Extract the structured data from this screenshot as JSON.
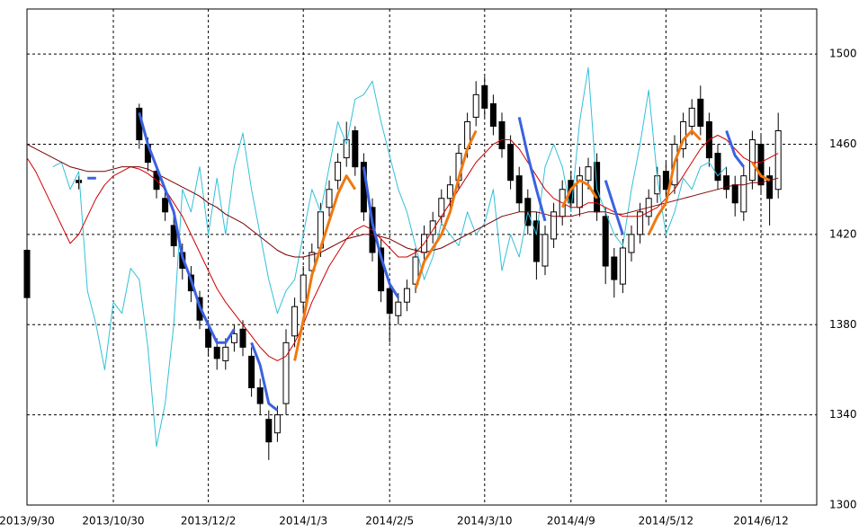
{
  "chart_data": {
    "type": "candlestick",
    "categories": [
      "2013/9/30",
      null,
      null,
      null,
      null,
      null,
      null,
      null,
      null,
      null,
      "2013/10/30",
      null,
      null,
      null,
      null,
      null,
      null,
      null,
      null,
      null,
      null,
      "2013/12/2",
      null,
      null,
      null,
      null,
      null,
      null,
      null,
      null,
      null,
      null,
      "2014/1/3",
      null,
      null,
      null,
      null,
      null,
      null,
      null,
      null,
      null,
      "2014/2/5",
      null,
      null,
      null,
      null,
      null,
      null,
      null,
      null,
      null,
      null,
      "2014/3/10",
      null,
      null,
      null,
      null,
      null,
      null,
      null,
      null,
      null,
      "2014/4/9",
      null,
      null,
      null,
      null,
      null,
      null,
      null,
      null,
      null,
      null,
      "2014/5/12",
      null,
      null,
      null,
      null,
      null,
      null,
      null,
      null,
      null,
      null,
      "2014/6/12",
      null,
      null
    ],
    "open": [
      1413,
      null,
      null,
      null,
      null,
      null,
      1444,
      null,
      null,
      null,
      null,
      null,
      null,
      1476,
      1460,
      1448,
      1436,
      1424,
      1412,
      1402,
      1392,
      1378,
      1370,
      1364,
      1372,
      1378,
      1366,
      1352,
      1338,
      1332,
      1345,
      1375,
      1390,
      1404,
      1414,
      1432,
      1444,
      1454,
      1466,
      1452,
      1432,
      1414,
      1396,
      1384,
      1390,
      1398,
      1412,
      1420,
      1428,
      1436,
      1444,
      1458,
      1472,
      1486,
      1478,
      1470,
      1460,
      1446,
      1436,
      1426,
      1406,
      1418,
      1428,
      1444,
      1432,
      1444,
      1452,
      1428,
      1410,
      1398,
      1412,
      1420,
      1428,
      1438,
      1448,
      1442,
      1458,
      1468,
      1480,
      1470,
      1456,
      1446,
      1442,
      1430,
      1444,
      1460,
      1446,
      1440
    ],
    "high": [
      1416,
      null,
      null,
      null,
      null,
      null,
      1446,
      null,
      null,
      null,
      null,
      null,
      null,
      1478,
      1463,
      1451,
      1440,
      1428,
      1416,
      1406,
      1395,
      1382,
      1374,
      1374,
      1380,
      1382,
      1370,
      1356,
      1342,
      1344,
      1378,
      1392,
      1406,
      1416,
      1434,
      1444,
      1456,
      1470,
      1468,
      1456,
      1436,
      1418,
      1400,
      1394,
      1400,
      1414,
      1424,
      1430,
      1440,
      1446,
      1460,
      1474,
      1488,
      1490,
      1482,
      1474,
      1464,
      1450,
      1440,
      1430,
      1424,
      1434,
      1444,
      1448,
      1450,
      1454,
      1456,
      1432,
      1414,
      1418,
      1424,
      1434,
      1440,
      1450,
      1452,
      1464,
      1474,
      1480,
      1486,
      1474,
      1460,
      1450,
      1446,
      1450,
      1466,
      1464,
      1450,
      1474
    ],
    "low": [
      1390,
      null,
      null,
      null,
      null,
      null,
      1440,
      null,
      null,
      null,
      null,
      null,
      null,
      1458,
      1448,
      1436,
      1426,
      1410,
      1400,
      1390,
      1378,
      1366,
      1360,
      1360,
      1368,
      1366,
      1348,
      1340,
      1320,
      1328,
      1340,
      1370,
      1386,
      1400,
      1410,
      1428,
      1440,
      1450,
      1446,
      1426,
      1408,
      1390,
      1372,
      1380,
      1386,
      1394,
      1408,
      1416,
      1424,
      1432,
      1440,
      1454,
      1468,
      1472,
      1464,
      1454,
      1440,
      1430,
      1420,
      1400,
      1402,
      1414,
      1424,
      1430,
      1428,
      1440,
      1426,
      1398,
      1392,
      1394,
      1408,
      1416,
      1424,
      1434,
      1436,
      1438,
      1454,
      1464,
      1464,
      1450,
      1440,
      1436,
      1428,
      1426,
      1440,
      1438,
      1424,
      1436
    ],
    "close": [
      1392,
      null,
      null,
      null,
      null,
      null,
      1443,
      null,
      null,
      null,
      null,
      null,
      null,
      1462,
      1452,
      1440,
      1430,
      1415,
      1405,
      1395,
      1382,
      1370,
      1365,
      1370,
      1376,
      1370,
      1352,
      1345,
      1328,
      1340,
      1372,
      1388,
      1402,
      1412,
      1430,
      1440,
      1452,
      1462,
      1450,
      1430,
      1412,
      1395,
      1385,
      1390,
      1396,
      1410,
      1420,
      1426,
      1436,
      1442,
      1456,
      1470,
      1482,
      1476,
      1468,
      1458,
      1444,
      1434,
      1424,
      1408,
      1420,
      1430,
      1440,
      1434,
      1446,
      1450,
      1430,
      1406,
      1400,
      1414,
      1420,
      1430,
      1436,
      1446,
      1440,
      1460,
      1470,
      1476,
      1468,
      1454,
      1444,
      1440,
      1434,
      1446,
      1462,
      1442,
      1436,
      1466
    ],
    "series": [
      {
        "color": "#33c0d8",
        "line_width": 1,
        "values": [
          null,
          null,
          null,
          1450,
          1452,
          1440,
          1448,
          1395,
          1380,
          1360,
          1390,
          1385,
          1405,
          1400,
          1370,
          1326,
          1345,
          1380,
          1440,
          1430,
          1450,
          1420,
          1445,
          1420,
          1450,
          1465,
          1440,
          1420,
          1400,
          1385,
          1395,
          1400,
          1420,
          1440,
          1430,
          1450,
          1470,
          1460,
          1480,
          1482,
          1488,
          1470,
          1455,
          1440,
          1430,
          1415,
          1400,
          1410,
          1425,
          1420,
          1415,
          1430,
          1420,
          1425,
          1440,
          1404,
          1420,
          1410,
          1430,
          1420,
          1450,
          1460,
          1450,
          1430,
          1470,
          1494,
          1440,
          1430,
          1420,
          1415,
          1440,
          1460,
          1484,
          1445,
          1420,
          1430,
          1445,
          1440,
          1450,
          1452,
          1446,
          1450,
          null,
          null,
          null,
          null,
          null,
          null
        ]
      },
      {
        "color": "#d00000",
        "line_width": 1,
        "values": [
          1454,
          1448,
          1440,
          1432,
          1424,
          1416,
          1420,
          1428,
          1436,
          1442,
          1446,
          1448,
          1450,
          1449,
          1447,
          1444,
          1440,
          1434,
          1428,
          1420,
          1412,
          1404,
          1396,
          1390,
          1385,
          1380,
          1375,
          1370,
          1366,
          1364,
          1366,
          1372,
          1380,
          1390,
          1398,
          1406,
          1412,
          1418,
          1422,
          1424,
          1422,
          1418,
          1414,
          1410,
          1410,
          1412,
          1416,
          1422,
          1428,
          1434,
          1440,
          1446,
          1452,
          1456,
          1460,
          1462,
          1462,
          1458,
          1452,
          1446,
          1440,
          1436,
          1434,
          1432,
          1432,
          1434,
          1434,
          1432,
          1430,
          1428,
          1428,
          1428,
          1430,
          1432,
          1436,
          1440,
          1446,
          1452,
          1458,
          1462,
          1464,
          1462,
          1458,
          1454,
          1452,
          1452,
          1454,
          1456
        ]
      },
      {
        "color": "#7a0000",
        "line_width": 1,
        "values": [
          1460,
          1458,
          1456,
          1454,
          1452,
          1450,
          1449,
          1448,
          1448,
          1448,
          1449,
          1450,
          1450,
          1450,
          1449,
          1447,
          1445,
          1443,
          1441,
          1439,
          1437,
          1434,
          1432,
          1429,
          1427,
          1425,
          1422,
          1419,
          1416,
          1413,
          1411,
          1410,
          1410,
          1411,
          1412,
          1414,
          1416,
          1418,
          1419,
          1420,
          1420,
          1419,
          1418,
          1416,
          1414,
          1413,
          1412,
          1413,
          1414,
          1416,
          1418,
          1420,
          1422,
          1424,
          1426,
          1428,
          1429,
          1430,
          1430,
          1430,
          1429,
          1428,
          1428,
          1428,
          1429,
          1430,
          1430,
          1430,
          1429,
          1429,
          1430,
          1431,
          1432,
          1433,
          1434,
          1435,
          1436,
          1437,
          1438,
          1439,
          1440,
          1441,
          1442,
          1442,
          1443,
          1443,
          1444,
          1445
        ]
      },
      {
        "color": "#3a62e0",
        "line_width": 3,
        "values": [
          null,
          null,
          null,
          null,
          null,
          null,
          null,
          1445,
          1445,
          null,
          null,
          null,
          null,
          1474,
          1460,
          1450,
          1440,
          1430,
          1410,
          1400,
          1388,
          1380,
          1372,
          1372,
          1378,
          null,
          1372,
          1362,
          1345,
          1342,
          null,
          null,
          null,
          null,
          null,
          null,
          null,
          null,
          null,
          1450,
          1425,
          1410,
          1398,
          1392,
          null,
          null,
          null,
          null,
          null,
          null,
          null,
          null,
          null,
          null,
          null,
          null,
          null,
          1472,
          1455,
          1440,
          1426,
          null,
          null,
          null,
          null,
          null,
          null,
          1444,
          1432,
          1420,
          null,
          null,
          null,
          null,
          null,
          null,
          null,
          null,
          null,
          null,
          null,
          1466,
          1455,
          1450,
          null,
          null,
          null,
          null
        ]
      },
      {
        "color": "#f07810",
        "line_width": 3,
        "values": [
          null,
          null,
          null,
          null,
          null,
          null,
          null,
          null,
          null,
          null,
          null,
          null,
          null,
          null,
          null,
          null,
          null,
          null,
          null,
          null,
          null,
          null,
          null,
          null,
          null,
          null,
          null,
          null,
          null,
          null,
          null,
          1364,
          1382,
          1402,
          1414,
          1426,
          1438,
          1446,
          1440,
          null,
          null,
          null,
          null,
          null,
          null,
          1396,
          1408,
          1414,
          1420,
          1430,
          1445,
          1458,
          1466,
          null,
          null,
          null,
          null,
          null,
          null,
          null,
          null,
          null,
          1432,
          1440,
          1444,
          1442,
          1436,
          null,
          null,
          null,
          null,
          null,
          1420,
          1428,
          1434,
          1452,
          1462,
          1466,
          1462,
          null,
          null,
          null,
          null,
          null,
          1452,
          1446,
          1444,
          null
        ]
      }
    ],
    "up_color": "#ffffff",
    "down_color": "#000000",
    "ylim": [
      1300,
      1520
    ],
    "yticks": [
      1300,
      1340,
      1380,
      1420,
      1460,
      1500
    ],
    "grid": true
  }
}
